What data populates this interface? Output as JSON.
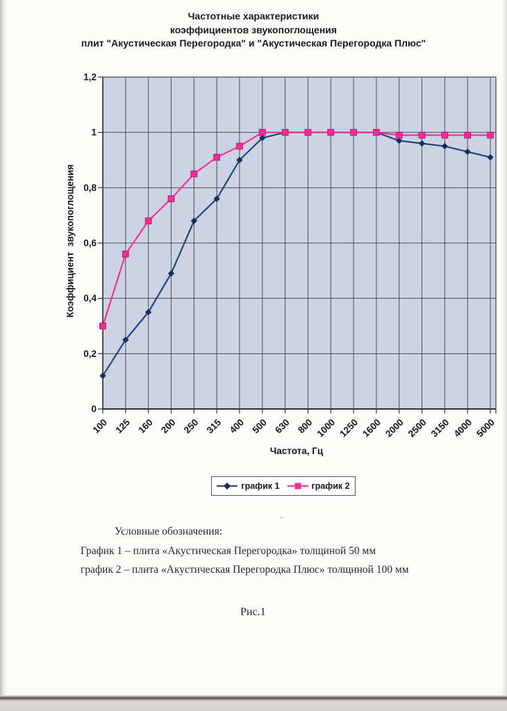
{
  "page": {
    "title_lines": [
      "Частотные характеристики",
      "коэффициентов звукопоглощения",
      "плит \"Акустическая Перегородка\" и \"Акустическая Перегородка Плюс\""
    ],
    "caption": "Рис.1"
  },
  "notes": {
    "heading": "Условные обозначения:",
    "line1": "График 1 – плита «Акустическая Перегородка» толщиной 50 мм",
    "line2": "график 2 – плита «Акустическая Перегородка Плюс» толщиной 100 мм"
  },
  "chart_data": {
    "type": "line",
    "title": "",
    "xlabel": "Частота, Гц",
    "ylabel": "Коэффициент  звукопоглощения",
    "categories": [
      "100",
      "125",
      "160",
      "200",
      "250",
      "315",
      "400",
      "500",
      "630",
      "800",
      "1000",
      "1250",
      "1600",
      "2000",
      "2500",
      "3150",
      "4000",
      "5000"
    ],
    "ylim": [
      0,
      1.2
    ],
    "y_ticks": [
      0,
      0.2,
      0.4,
      0.6,
      0.8,
      1,
      1.2
    ],
    "y_tick_labels": [
      "0",
      "0,2",
      "0,4",
      "0,6",
      "0,8",
      "1",
      "1,2"
    ],
    "grid": true,
    "legend_position": "bottom",
    "plot_bg": "#ccd3e2",
    "grid_color": "#4a4e58",
    "series": [
      {
        "name": "график 1",
        "marker": "diamond",
        "color": "#24427e",
        "marker_color": "#142f60",
        "values": [
          0.12,
          0.25,
          0.35,
          0.49,
          0.68,
          0.76,
          0.9,
          0.98,
          1.0,
          1.0,
          1.0,
          1.0,
          1.0,
          0.97,
          0.96,
          0.95,
          0.93,
          0.91
        ]
      },
      {
        "name": "график 2",
        "marker": "square",
        "color": "#f0309b",
        "marker_color": "#ef2e9a",
        "marker_stroke": "#c81476",
        "values": [
          0.3,
          0.56,
          0.68,
          0.76,
          0.85,
          0.91,
          0.95,
          1.0,
          1.0,
          1.0,
          1.0,
          1.0,
          1.0,
          0.99,
          0.99,
          0.99,
          0.99,
          0.99
        ]
      }
    ]
  }
}
